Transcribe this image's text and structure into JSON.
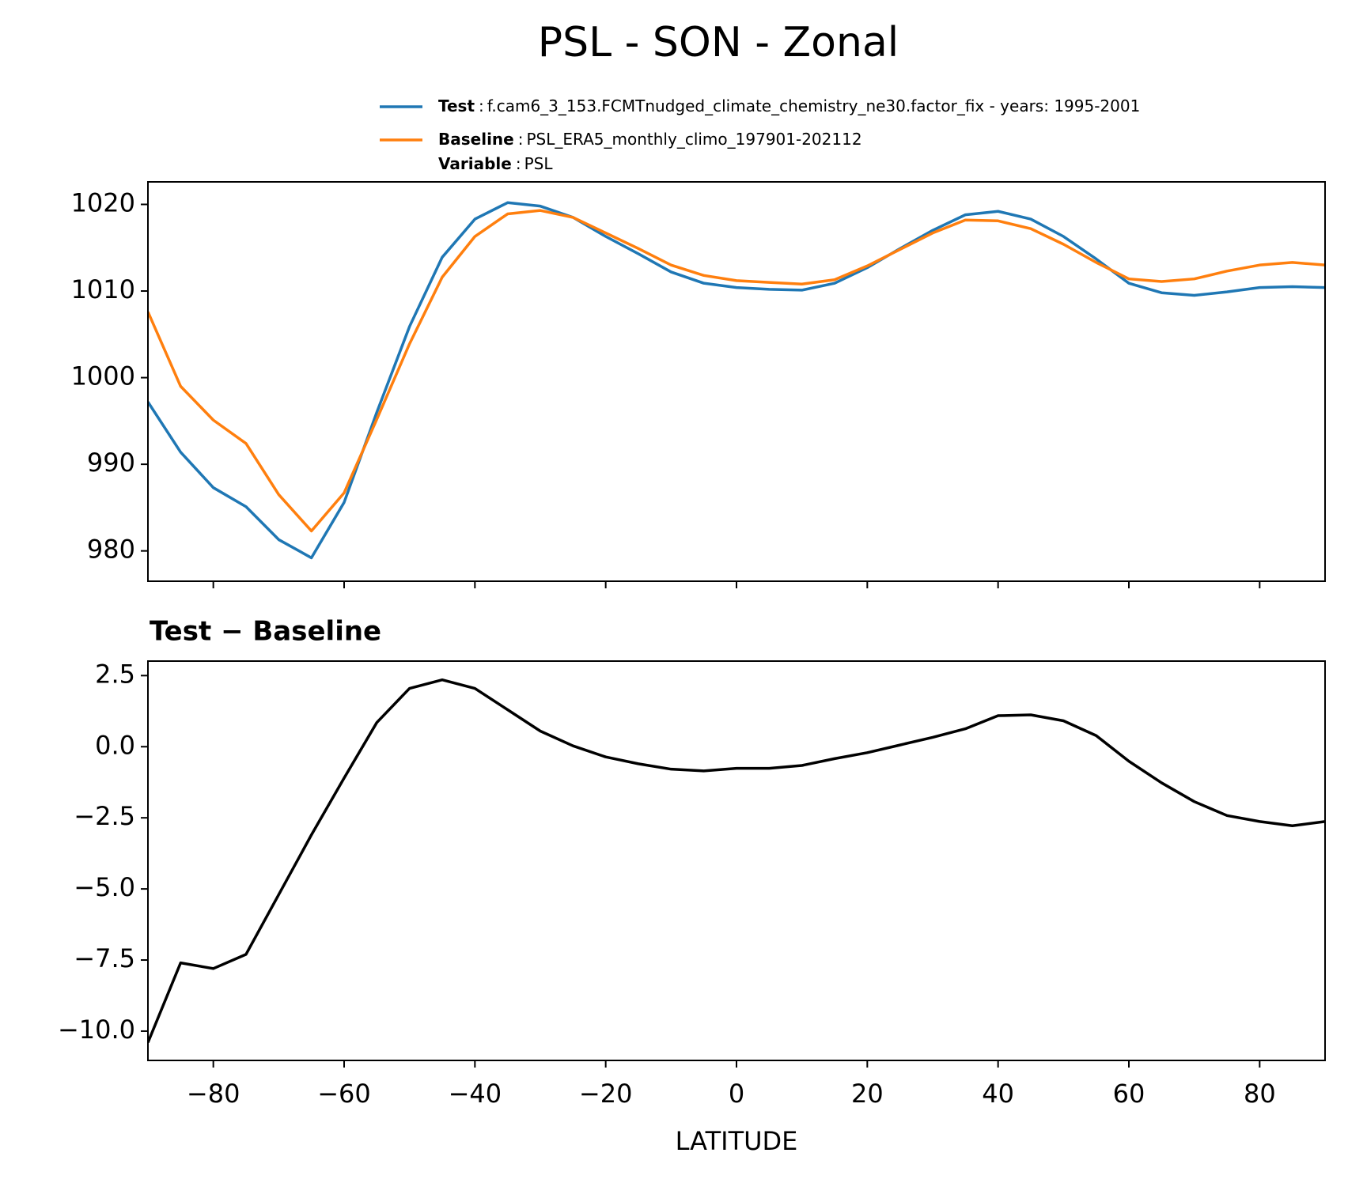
{
  "title": "PSL - SON - Zonal",
  "legend": [
    {
      "name": "Test",
      "separator": ":",
      "description": "f.cam6_3_153.FCMTnudged_climate_chemistry_ne30.factor_fix - years: 1995-2001",
      "color": "#1f77b4"
    },
    {
      "name": "Baseline",
      "separator": ":",
      "description": "PSL_ERA5_monthly_climo_197901-202112",
      "color": "#ff7f0e"
    },
    {
      "name": "Variable",
      "separator": ":",
      "description": "PSL"
    }
  ],
  "chart_data": [
    {
      "type": "line",
      "x": [
        -90,
        -85,
        -80,
        -75,
        -70,
        -65,
        -60,
        -55,
        -50,
        -45,
        -40,
        -35,
        -30,
        -25,
        -20,
        -15,
        -10,
        -5,
        0,
        5,
        10,
        15,
        20,
        25,
        30,
        35,
        40,
        45,
        50,
        55,
        60,
        65,
        70,
        75,
        80,
        85,
        90
      ],
      "series": [
        {
          "name": "Test",
          "color": "#1f77b4",
          "values": [
            997.2,
            991.4,
            987.3,
            985.1,
            981.3,
            979.2,
            985.6,
            996.0,
            1005.9,
            1013.9,
            1018.3,
            1020.2,
            1019.8,
            1018.5,
            1016.3,
            1014.3,
            1012.2,
            1010.9,
            1010.4,
            1010.2,
            1010.1,
            1010.9,
            1012.7,
            1014.9,
            1017.0,
            1018.8,
            1019.2,
            1018.3,
            1016.3,
            1013.7,
            1010.9,
            1009.8,
            1009.5,
            1009.9,
            1010.4,
            1010.5,
            1010.4
          ]
        },
        {
          "name": "Baseline",
          "color": "#ff7f0e",
          "values": [
            1007.6,
            999.0,
            995.1,
            992.4,
            986.5,
            982.3,
            986.7,
            995.2,
            1003.9,
            1011.6,
            1016.3,
            1018.9,
            1019.3,
            1018.5,
            1016.7,
            1014.9,
            1013.0,
            1011.8,
            1011.2,
            1011.0,
            1010.8,
            1011.3,
            1012.9,
            1014.8,
            1016.7,
            1018.2,
            1018.1,
            1017.2,
            1015.4,
            1013.3,
            1011.4,
            1011.1,
            1011.4,
            1012.3,
            1013.0,
            1013.3,
            1013.0
          ]
        }
      ],
      "xlim": [
        -90,
        90
      ],
      "xticks": [
        -80,
        -60,
        -40,
        -20,
        0,
        20,
        40,
        60,
        80
      ],
      "ylim": [
        976.5,
        1022.6
      ],
      "yticks": [
        980,
        990,
        1000,
        1010,
        1020
      ]
    },
    {
      "type": "line",
      "title": "Test − Baseline",
      "x_label": "LATITUDE",
      "x": [
        -90,
        -85,
        -80,
        -75,
        -70,
        -65,
        -60,
        -55,
        -50,
        -45,
        -40,
        -35,
        -30,
        -25,
        -20,
        -15,
        -10,
        -5,
        0,
        5,
        10,
        15,
        20,
        25,
        30,
        35,
        40,
        45,
        50,
        55,
        60,
        65,
        70,
        75,
        80,
        85,
        90
      ],
      "series": [
        {
          "color": "#000000",
          "values": [
            -10.4,
            -7.6,
            -7.8,
            -7.3,
            -5.2,
            -3.1,
            -1.1,
            0.85,
            2.05,
            2.35,
            2.05,
            1.3,
            0.55,
            0.03,
            -0.36,
            -0.6,
            -0.79,
            -0.85,
            -0.76,
            -0.76,
            -0.66,
            -0.42,
            -0.21,
            0.06,
            0.33,
            0.63,
            1.09,
            1.12,
            0.91,
            0.39,
            -0.51,
            -1.27,
            -1.93,
            -2.42,
            -2.63,
            -2.78,
            -2.63
          ]
        }
      ],
      "xlim": [
        -90,
        90
      ],
      "xticks": [
        {
          "value": -80,
          "label": "−80"
        },
        {
          "value": -60,
          "label": "−60"
        },
        {
          "value": -40,
          "label": "−40"
        },
        {
          "value": -20,
          "label": "−20"
        },
        0,
        20,
        40,
        60,
        80
      ],
      "ylim": [
        -11.03,
        3.01
      ],
      "yticks": [
        {
          "value": -10,
          "label": "−10.0"
        },
        {
          "value": -7.5,
          "label": "−7.5"
        },
        {
          "value": -5,
          "label": "−5.0"
        },
        {
          "value": -2.5,
          "label": "−2.5"
        },
        {
          "value": 0,
          "label": "0.0"
        },
        2.5
      ]
    }
  ]
}
